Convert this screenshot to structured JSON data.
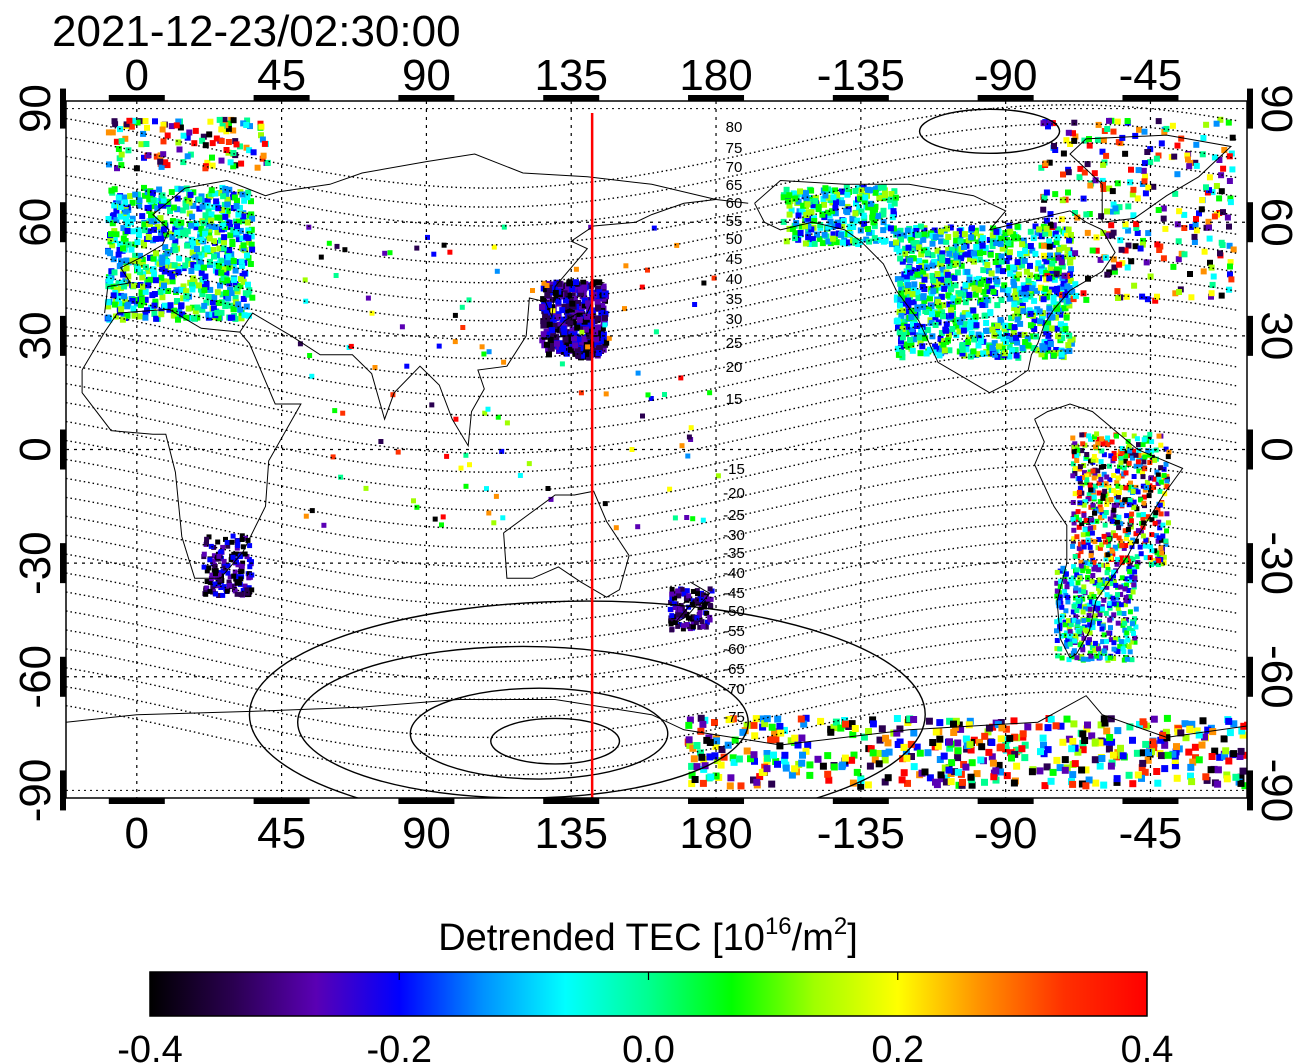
{
  "title": "2021-12-23/02:30:00",
  "map": {
    "lon_range": [
      -22,
      345
    ],
    "lat_range": [
      -92,
      92
    ],
    "grid_lons": [
      0,
      45,
      90,
      135,
      180,
      225,
      270,
      315
    ],
    "grid_lats": [
      -60,
      -30,
      0,
      30,
      60
    ],
    "top_lon_ticks": [
      {
        "lon": 0,
        "label": "0"
      },
      {
        "lon": 45,
        "label": "45"
      },
      {
        "lon": 90,
        "label": "90"
      },
      {
        "lon": 135,
        "label": "135"
      },
      {
        "lon": 180,
        "label": "180"
      },
      {
        "lon": 225,
        "label": "-135"
      },
      {
        "lon": 270,
        "label": "-90"
      },
      {
        "lon": 315,
        "label": "-45"
      }
    ],
    "bottom_lon_ticks": [
      {
        "lon": 0,
        "label": "0"
      },
      {
        "lon": 45,
        "label": "45"
      },
      {
        "lon": 90,
        "label": "90"
      },
      {
        "lon": 135,
        "label": "135"
      },
      {
        "lon": 180,
        "label": "180"
      },
      {
        "lon": 225,
        "label": "-135"
      },
      {
        "lon": 270,
        "label": "-90"
      },
      {
        "lon": 315,
        "label": "-45"
      }
    ],
    "lat_ticks": [
      {
        "lat": 90,
        "label": "90"
      },
      {
        "lat": 60,
        "label": "60"
      },
      {
        "lat": 30,
        "label": "30"
      },
      {
        "lat": 0,
        "label": "0"
      },
      {
        "lat": -30,
        "label": "-30"
      },
      {
        "lat": -60,
        "label": "-60"
      },
      {
        "lat": -90,
        "label": "-90"
      }
    ],
    "red_line_lon": 141.5,
    "north_mlat_labels": [
      "80",
      "75",
      "70",
      "65",
      "60",
      "55",
      "50",
      "45",
      "40",
      "35",
      "30",
      "25",
      "20",
      "15"
    ],
    "south_mlat_labels": [
      "-15",
      "-20",
      "-25",
      "-30",
      "-35",
      "-40",
      "-45",
      "-50",
      "-55",
      "-60",
      "-65",
      "-70",
      "-75"
    ]
  },
  "colorbar": {
    "label_main": "Detrended TEC  [10",
    "label_sup1": "16",
    "label_mid": "/m",
    "label_sup2": "2",
    "label_end": "]",
    "min": -0.4,
    "max": 0.4,
    "ticks": [
      "-0.4",
      "-0.2",
      "0.0",
      "0.2",
      "0.4"
    ],
    "colors": [
      "#000000",
      "#2a0050",
      "#5a00b4",
      "#0000ff",
      "#0090ff",
      "#00ffff",
      "#00ff90",
      "#00ff00",
      "#a0ff00",
      "#ffff00",
      "#ff9000",
      "#ff3000",
      "#ff0000"
    ]
  }
}
